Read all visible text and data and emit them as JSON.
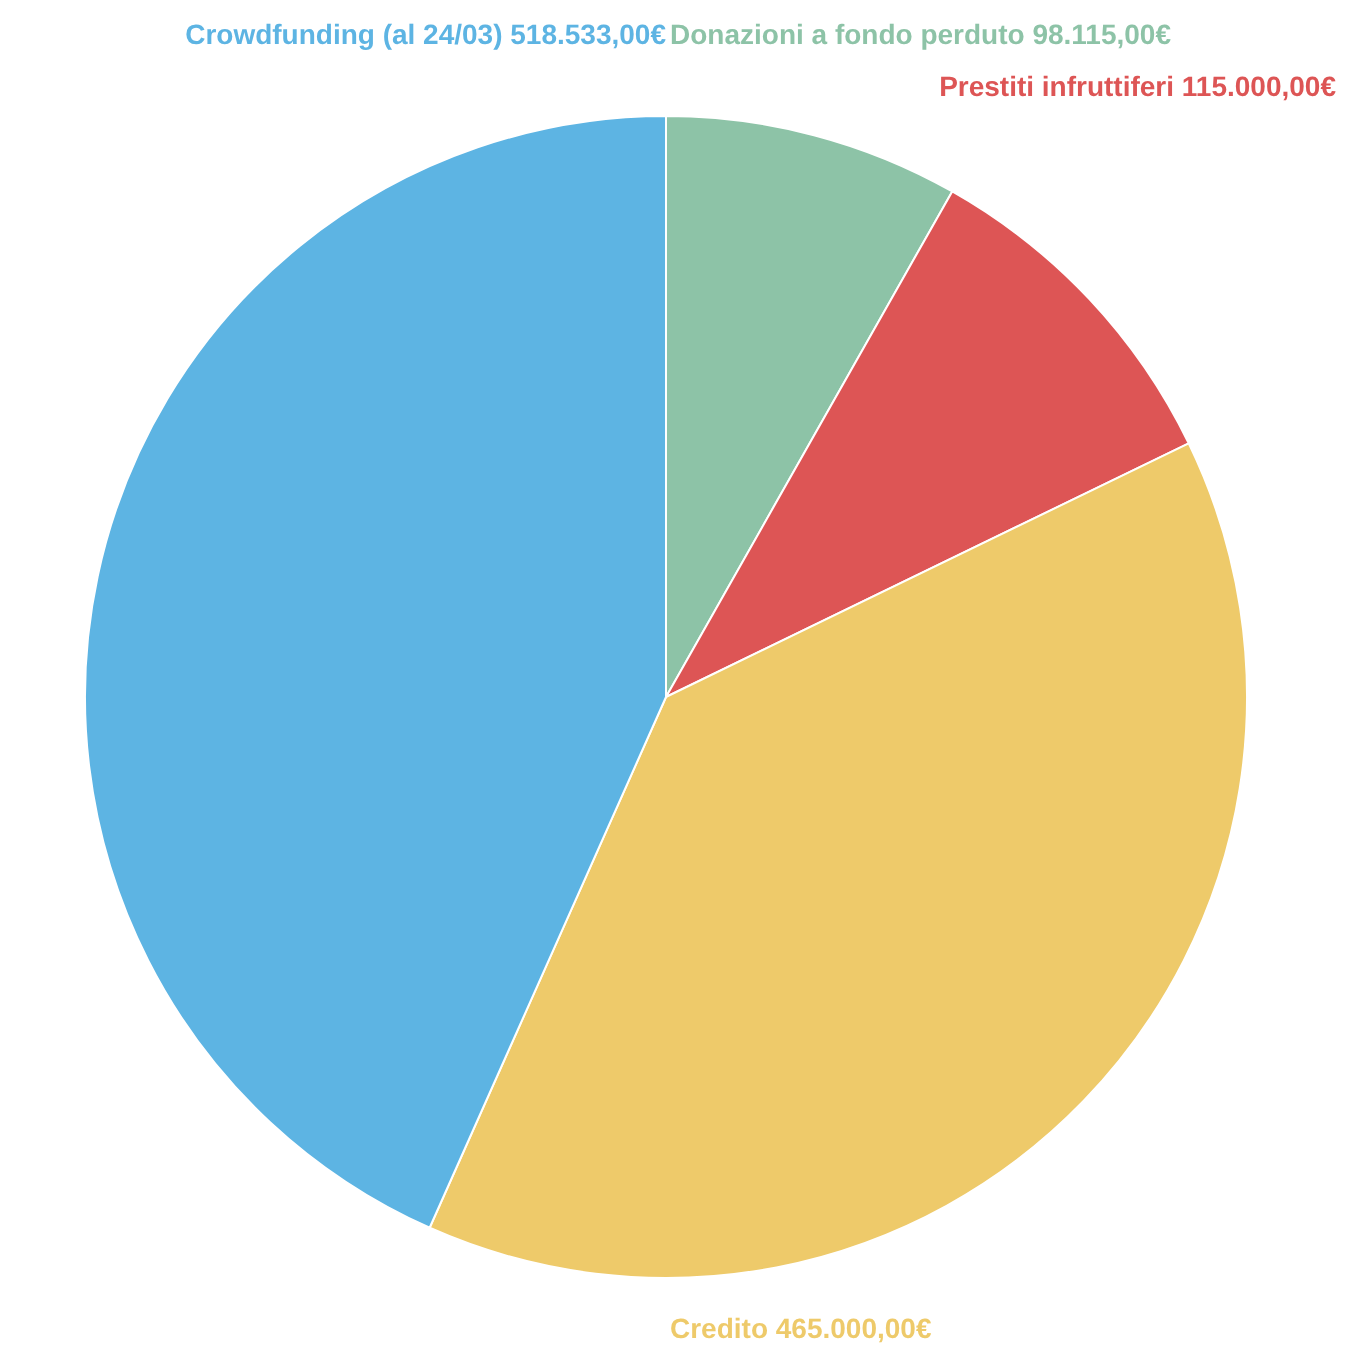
{
  "chart_data": {
    "type": "pie",
    "categories": [
      "Donazioni a fondo perduto 98.115,00€",
      "Prestiti infruttiferi 115.000,00€",
      "Credito 465.000,00€",
      "Crowdfunding (al 24/03) 518.533,00€"
    ],
    "values": [
      98115,
      115000,
      465000,
      518533
    ],
    "colors": [
      "#8dc3a7",
      "#dd5555",
      "#eeca6a",
      "#5db4e3"
    ],
    "legend": false
  }
}
